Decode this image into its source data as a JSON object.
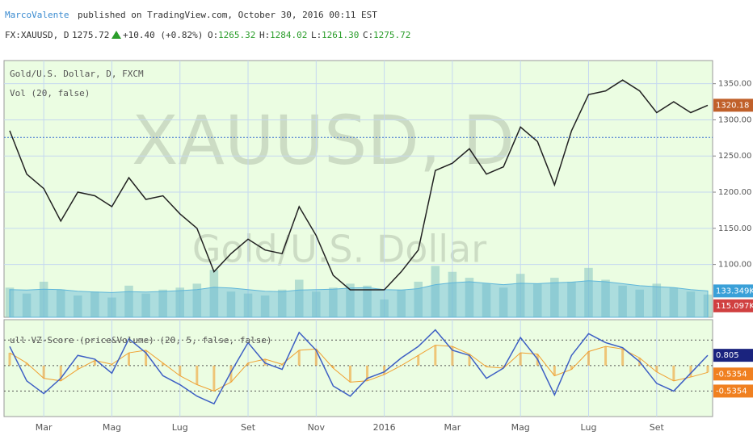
{
  "header": {
    "author": "MarcoValente",
    "published": "published on TradingView.com, October 30, 2016 00:11 EST",
    "symbol": "FX:XAUUSD, D",
    "close": 1275.72,
    "change": "+10.40 (+0.82%)",
    "open_label": "O:",
    "open": "1265.32",
    "high_label": "H:",
    "high": "1284.02",
    "low_label": "L:",
    "low": "1261.30",
    "close_label": "C:"
  },
  "watermark": {
    "symbol": "XAUUSD, D",
    "name": "Gold/U.S. Dollar"
  },
  "chart_data": [
    {
      "type": "line",
      "labels": [
        "Gold/U.S. Dollar, D, FXCM",
        "Vol (20, false)"
      ],
      "categories": [
        null,
        null,
        "Mar",
        null,
        null,
        null,
        "Mag",
        null,
        null,
        null,
        "Lug",
        null,
        null,
        null,
        "Set",
        null,
        null,
        null,
        "Nov",
        null,
        null,
        null,
        "2016",
        null,
        null,
        null,
        "Mar",
        null,
        null,
        null,
        "Mag",
        null,
        null,
        null,
        "Lug",
        null,
        null,
        null,
        "Set",
        null,
        null,
        null
      ],
      "series": [
        {
          "color": "#222222",
          "values": [
            1285,
            1225,
            1205,
            1160,
            1200,
            1195,
            1180,
            1220,
            1190,
            1195,
            1170,
            1150,
            1090,
            1115,
            1135,
            1120,
            1115,
            1180,
            1140,
            1085,
            1065,
            1065,
            1065,
            1090,
            1120,
            1230,
            1240,
            1260,
            1225,
            1235,
            1290,
            1270,
            1210,
            1285,
            1335,
            1340,
            1355,
            1340,
            1310,
            1325,
            1310,
            1320.18
          ]
        },
        {
          "type": "bar",
          "axis": "y2",
          "color": "#8fc9c4",
          "values": [
            150000,
            120000,
            180000,
            140000,
            110000,
            130000,
            100000,
            160000,
            120000,
            140000,
            150000,
            170000,
            240000,
            130000,
            120000,
            110000,
            140000,
            190000,
            130000,
            150000,
            170000,
            160000,
            90000,
            140000,
            180000,
            260000,
            230000,
            200000,
            170000,
            150000,
            220000,
            170000,
            200000,
            180000,
            250000,
            190000,
            160000,
            140000,
            170000,
            150000,
            130000,
            115097
          ],
          "value_labels": [
            null,
            null,
            null,
            null,
            null,
            null,
            null,
            null,
            null,
            null,
            null,
            null,
            null,
            null,
            null,
            null,
            null,
            null,
            null,
            null,
            null,
            null,
            null,
            null,
            null,
            null,
            null,
            null,
            null,
            null,
            null,
            null,
            null,
            null,
            null,
            null,
            null,
            null,
            null,
            null,
            null,
            "115.097K"
          ]
        },
        {
          "type": "area",
          "axis": "y2",
          "color": "#5fb6d9",
          "values": [
            140000,
            138000,
            142000,
            140000,
            132000,
            128000,
            125000,
            130000,
            128000,
            131000,
            135000,
            140000,
            152000,
            148000,
            140000,
            132000,
            130000,
            138000,
            140000,
            142000,
            148000,
            150000,
            140000,
            138000,
            145000,
            165000,
            175000,
            180000,
            172000,
            165000,
            172000,
            170000,
            175000,
            178000,
            185000,
            180000,
            170000,
            160000,
            155000,
            150000,
            140000,
            133349
          ],
          "value_labels": [
            null,
            null,
            null,
            null,
            null,
            null,
            null,
            null,
            null,
            null,
            null,
            null,
            null,
            null,
            null,
            null,
            null,
            null,
            null,
            null,
            null,
            null,
            null,
            null,
            null,
            null,
            null,
            null,
            null,
            null,
            null,
            null,
            null,
            null,
            null,
            null,
            null,
            null,
            null,
            null,
            null,
            "133.349K"
          ]
        }
      ],
      "ylim": [
        1027,
        1382
      ],
      "yticks": [
        {
          "value": 1100,
          "label": "1100.00"
        },
        {
          "value": 1150,
          "label": "1150.00"
        },
        {
          "value": 1200,
          "label": "1200.00"
        },
        {
          "value": 1250,
          "label": "1250.00"
        },
        {
          "value": 1300,
          "label": "1300.00"
        },
        {
          "value": 1350,
          "label": "1350.00"
        }
      ],
      "y2lim": [
        0,
        1300000
      ],
      "grid": true
    },
    {
      "type": "line",
      "title": "ull VZ-Score (price&Volume) (20, 5, false, false)",
      "series": [
        {
          "color": "#3d5fc4",
          "values": [
            1.5,
            -1.2,
            -2.2,
            -1.0,
            0.8,
            0.5,
            -0.6,
            2.1,
            1.0,
            -0.8,
            -1.5,
            -2.4,
            -3.0,
            -0.5,
            1.8,
            0.2,
            -0.3,
            2.6,
            1.2,
            -1.6,
            -2.4,
            -1.0,
            -0.5,
            0.6,
            1.5,
            2.8,
            1.2,
            0.8,
            -1.0,
            -0.2,
            2.2,
            0.5,
            -2.3,
            0.8,
            2.5,
            1.8,
            1.4,
            0.3,
            -1.4,
            -2.0,
            -0.6,
            0.805
          ]
        },
        {
          "type": "histogram",
          "color": "#f0a030",
          "values": [
            1.0,
            0.2,
            -1.0,
            -1.2,
            -0.3,
            0.4,
            0.1,
            1.0,
            1.2,
            0.2,
            -0.8,
            -1.5,
            -2.0,
            -1.3,
            0.2,
            0.5,
            0.1,
            1.2,
            1.3,
            -0.2,
            -1.3,
            -1.2,
            -0.7,
            0.0,
            0.8,
            1.6,
            1.5,
            0.9,
            -0.1,
            -0.2,
            1.0,
            0.9,
            -0.8,
            -0.3,
            1.1,
            1.5,
            1.3,
            0.6,
            -0.5,
            -1.2,
            -0.9,
            -0.5354
          ]
        }
      ],
      "levels": [
        2,
        0,
        -2
      ],
      "ylim": [
        -4,
        3.6
      ]
    }
  ]
}
